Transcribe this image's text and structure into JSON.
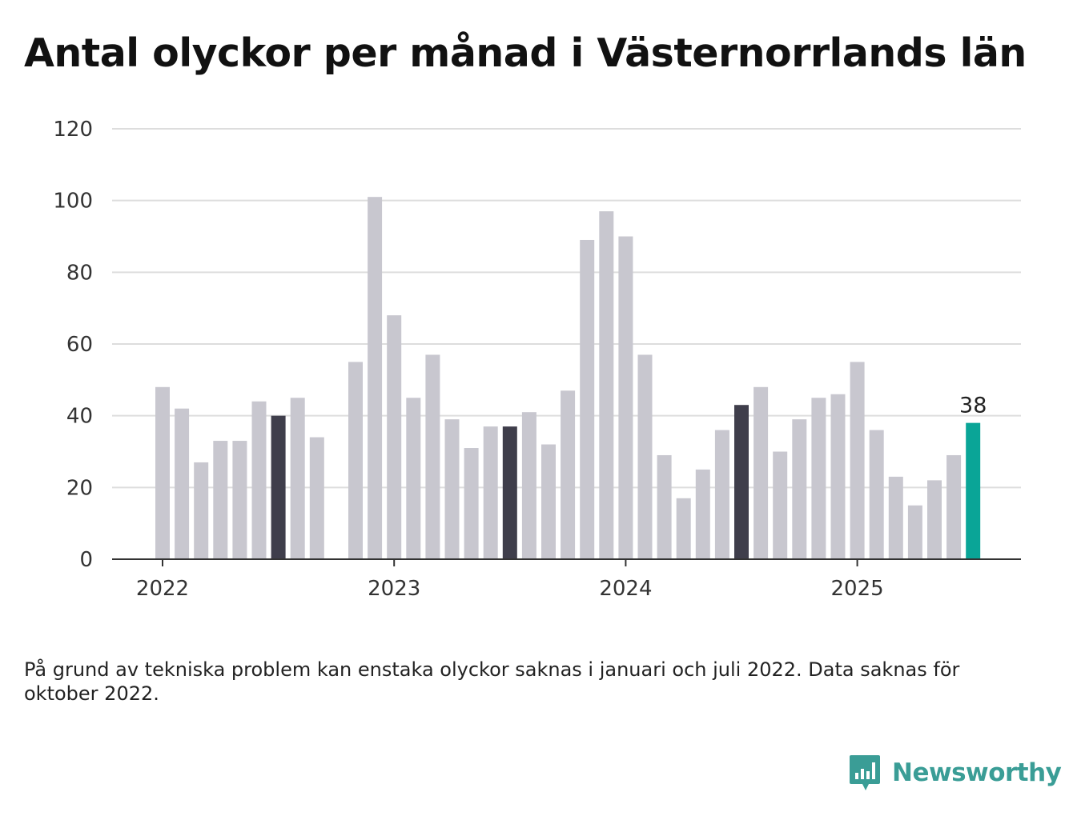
{
  "title": "Antal olyckor per månad i Västernorrlands län",
  "note": "På grund av tekniska problem kan enstaka olyckor saknas i januari och juli 2022. Data saknas för oktober 2022.",
  "brand": {
    "name": "Newsworthy",
    "icon": "newsworthy-logo-icon",
    "color": "#3a9d96"
  },
  "colors": {
    "default": "#c8c7cf",
    "highlight": "#3f3e4b",
    "latest": "#0aa597",
    "grid": "#dddddd",
    "axis": "#333333"
  },
  "chart_data": {
    "type": "bar",
    "title": "Antal olyckor per månad i Västernorrlands län",
    "xlabel": "",
    "ylabel": "",
    "ylim": [
      0,
      120
    ],
    "yticks": [
      "0",
      "20",
      "40",
      "60",
      "80",
      "100",
      "120"
    ],
    "xticks": [
      "2022",
      "2023",
      "2024",
      "2025"
    ],
    "grid": true,
    "categories": [
      "2022-01",
      "2022-02",
      "2022-03",
      "2022-04",
      "2022-05",
      "2022-06",
      "2022-07",
      "2022-08",
      "2022-09",
      "2022-10",
      "2022-11",
      "2022-12",
      "2023-01",
      "2023-02",
      "2023-03",
      "2023-04",
      "2023-05",
      "2023-06",
      "2023-07",
      "2023-08",
      "2023-09",
      "2023-10",
      "2023-11",
      "2023-12",
      "2024-01",
      "2024-02",
      "2024-03",
      "2024-04",
      "2024-05",
      "2024-06",
      "2024-07",
      "2024-08",
      "2024-09",
      "2024-10",
      "2024-11",
      "2024-12",
      "2025-01",
      "2025-02",
      "2025-03",
      "2025-04",
      "2025-05",
      "2025-06",
      "2025-07"
    ],
    "values": [
      48,
      42,
      27,
      33,
      33,
      44,
      40,
      45,
      34,
      null,
      55,
      101,
      68,
      45,
      57,
      39,
      31,
      37,
      37,
      41,
      32,
      47,
      89,
      97,
      90,
      57,
      29,
      17,
      25,
      36,
      43,
      48,
      30,
      39,
      45,
      46,
      55,
      36,
      23,
      15,
      22,
      29,
      38
    ],
    "highlighted": [
      "2022-07",
      "2023-07",
      "2024-07"
    ],
    "latest": "2025-07",
    "data_labels": [
      {
        "category": "2025-07",
        "text": "38"
      }
    ]
  }
}
